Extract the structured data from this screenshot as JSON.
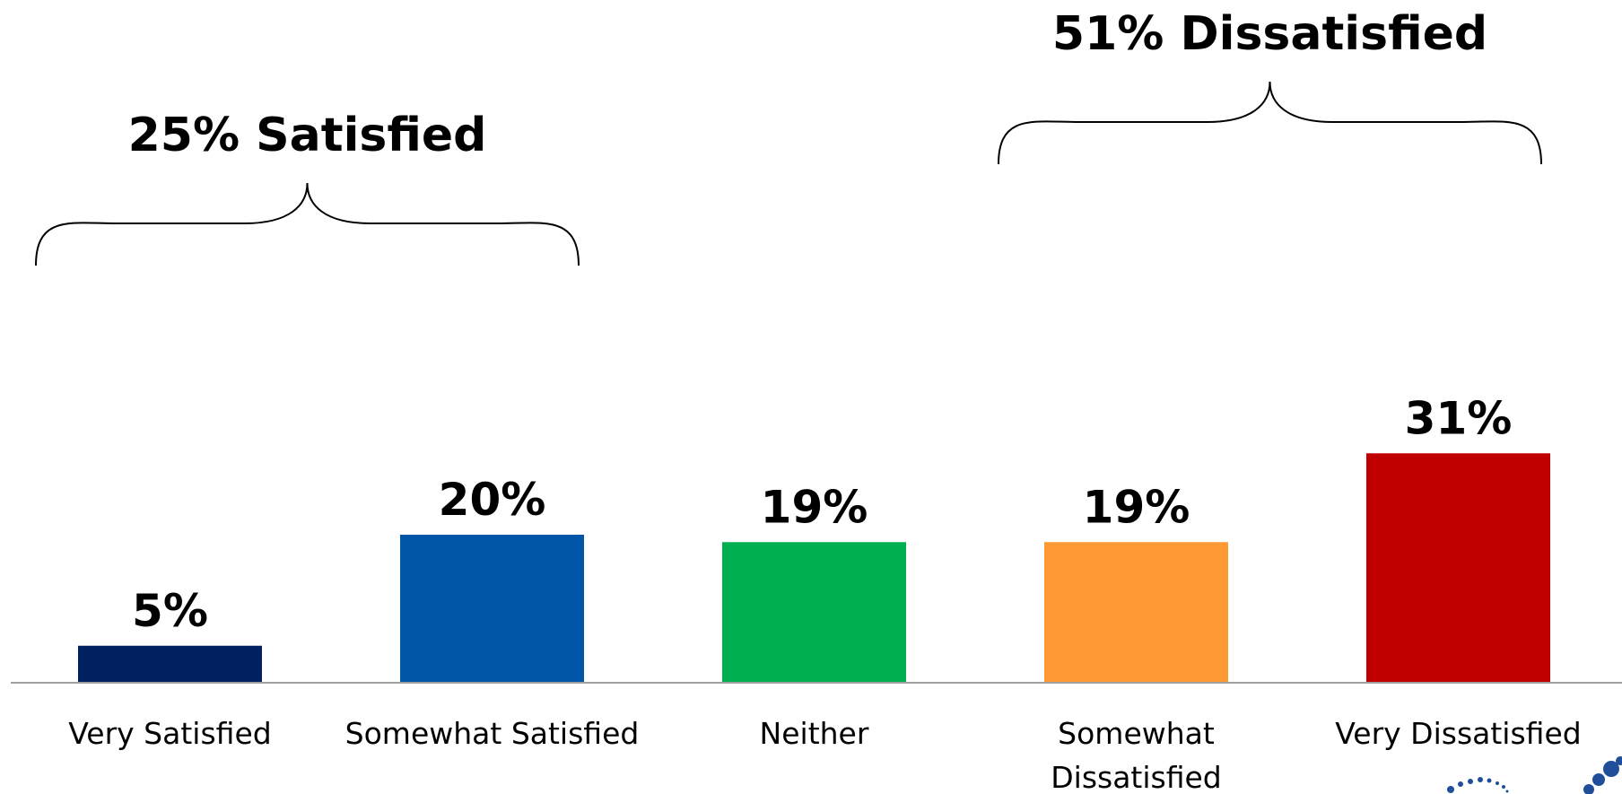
{
  "chart_data": {
    "type": "bar",
    "categories": [
      "Very Satisfied",
      "Somewhat Satisfied",
      "Neither",
      "Somewhat Dissatisfied",
      "Very Dissatisfied"
    ],
    "category_lines": [
      [
        "Very Satisfied"
      ],
      [
        "Somewhat Satisfied"
      ],
      [
        "Neither"
      ],
      [
        "Somewhat",
        "Dissatisfied"
      ],
      [
        "Very Dissatisfied"
      ]
    ],
    "values": [
      5,
      20,
      19,
      19,
      31
    ],
    "data_labels": [
      "5%",
      "20%",
      "19%",
      "19%",
      "31%"
    ],
    "colors": [
      "#002060",
      "#0057A8",
      "#00B050",
      "#FF9933",
      "#C00000"
    ],
    "ylim": [
      0,
      35
    ],
    "xlabel": "",
    "ylabel": "",
    "grid": false,
    "annotations": [
      {
        "text": "25% Satisfied",
        "spans": [
          "Very Satisfied",
          "Somewhat Satisfied"
        ]
      },
      {
        "text": "51% Dissatisfied",
        "spans": [
          "Somewhat Dissatisfied",
          "Very Dissatisfied"
        ]
      }
    ],
    "axis_color": "#A0A0A0"
  },
  "logo": {
    "name": "dots-logo-icon",
    "color": "#1F4E9A"
  }
}
